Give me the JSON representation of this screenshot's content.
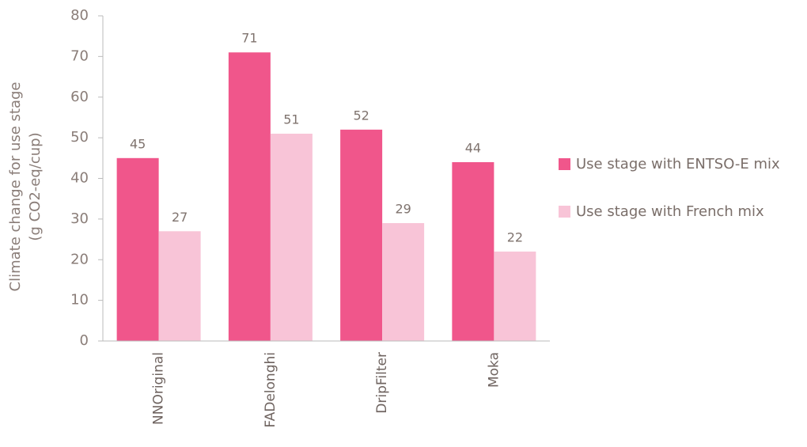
{
  "chart_data": {
    "type": "bar",
    "y_label": [
      "Climate change for use stage",
      "(g CO2-eq/cup)"
    ],
    "categories": [
      "NNOriginal",
      "FADelonghi",
      "DripFilter",
      "Moka"
    ],
    "series": [
      {
        "name": "Use stage with ENTSO-E mix",
        "color": "#f0568b",
        "values": [
          45,
          71,
          52,
          44
        ]
      },
      {
        "name": "Use stage with French mix",
        "color": "#f8c4d7",
        "values": [
          27,
          51,
          29,
          22
        ]
      }
    ],
    "ylim": [
      0,
      80
    ],
    "yticks": [
      0,
      10,
      20,
      30,
      40,
      50,
      60,
      70,
      80
    ],
    "legend": "right",
    "grid": false
  }
}
